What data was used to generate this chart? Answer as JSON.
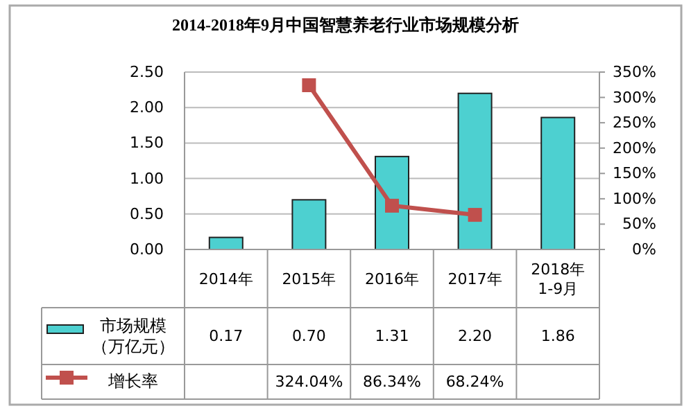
{
  "chart_data": {
    "type": "bar",
    "title": "2014-2018年9月中国智慧养老行业市场规模分析",
    "categories": [
      "2014年",
      "2015年",
      "2016年",
      "2017年",
      "2018年\n1-9月"
    ],
    "series": [
      {
        "name": "市场规模（万亿元）",
        "color": "#4dd0d0",
        "values": [
          0.17,
          0.7,
          1.31,
          2.2,
          1.86
        ],
        "value_labels": [
          "0.17",
          "0.70",
          "1.31",
          "2.20",
          "1.86"
        ]
      },
      {
        "name": "增长率",
        "type": "line",
        "axis": "y2",
        "color": "#c0504d",
        "values": [
          null,
          324.04,
          86.34,
          68.24,
          null
        ],
        "value_labels": [
          null,
          "324.04%",
          "86.34%",
          "68.24%",
          null
        ]
      }
    ],
    "ylim": [
      0,
      2.5
    ],
    "yticks": [
      {
        "value": 0,
        "label": "0.00"
      },
      {
        "value": 0.5,
        "label": "0.50"
      },
      {
        "value": 1,
        "label": "1.00"
      },
      {
        "value": 1.5,
        "label": "1.50"
      },
      {
        "value": 2,
        "label": "2.00"
      },
      {
        "value": 2.5,
        "label": "2.50"
      }
    ],
    "y2lim": [
      0,
      350
    ],
    "y2ticks": [
      {
        "value": 0,
        "label": "0%"
      },
      {
        "value": 50,
        "label": "50%"
      },
      {
        "value": 100,
        "label": "100%"
      },
      {
        "value": 150,
        "label": "150%"
      },
      {
        "value": 200,
        "label": "200%"
      },
      {
        "value": 250,
        "label": "250%"
      },
      {
        "value": 300,
        "label": "300%"
      },
      {
        "value": 350,
        "label": "350%"
      }
    ],
    "grid": "y",
    "legend": "bottom left",
    "marker": "square",
    "line_style": "solid"
  }
}
